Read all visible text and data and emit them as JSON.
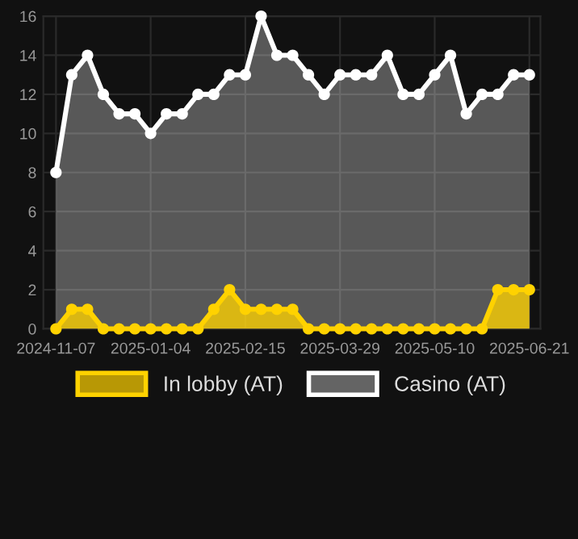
{
  "chart_data": {
    "type": "area",
    "categories": [
      "2024-11-07",
      null,
      null,
      null,
      null,
      null,
      "2025-01-04",
      null,
      null,
      null,
      null,
      null,
      "2025-02-15",
      null,
      null,
      null,
      null,
      null,
      "2025-03-29",
      null,
      null,
      null,
      null,
      null,
      "2025-05-10",
      null,
      null,
      null,
      null,
      null,
      "2025-06-21"
    ],
    "series": [
      {
        "name": "In lobby (AT)",
        "color": "#ffd200",
        "values": [
          0,
          1,
          1,
          0,
          0,
          0,
          0,
          0,
          0,
          0,
          1,
          2,
          1,
          1,
          1,
          1,
          0,
          0,
          0,
          0,
          0,
          0,
          0,
          0,
          0,
          0,
          0,
          0,
          2,
          2,
          2
        ]
      },
      {
        "name": "Casino (AT)",
        "color": "#ffffff",
        "values": [
          8,
          13,
          14,
          12,
          11,
          11,
          10,
          11,
          11,
          12,
          12,
          13,
          13,
          16,
          14,
          14,
          13,
          12,
          13,
          13,
          13,
          14,
          12,
          12,
          13,
          14,
          11,
          12,
          12,
          13,
          13
        ]
      }
    ],
    "ylim": [
      0,
      16
    ],
    "yticks": [
      0,
      2,
      4,
      6,
      8,
      10,
      12,
      14,
      16
    ],
    "grid": true,
    "legend": "bottom",
    "marker": "circle",
    "line_style": "solid"
  }
}
